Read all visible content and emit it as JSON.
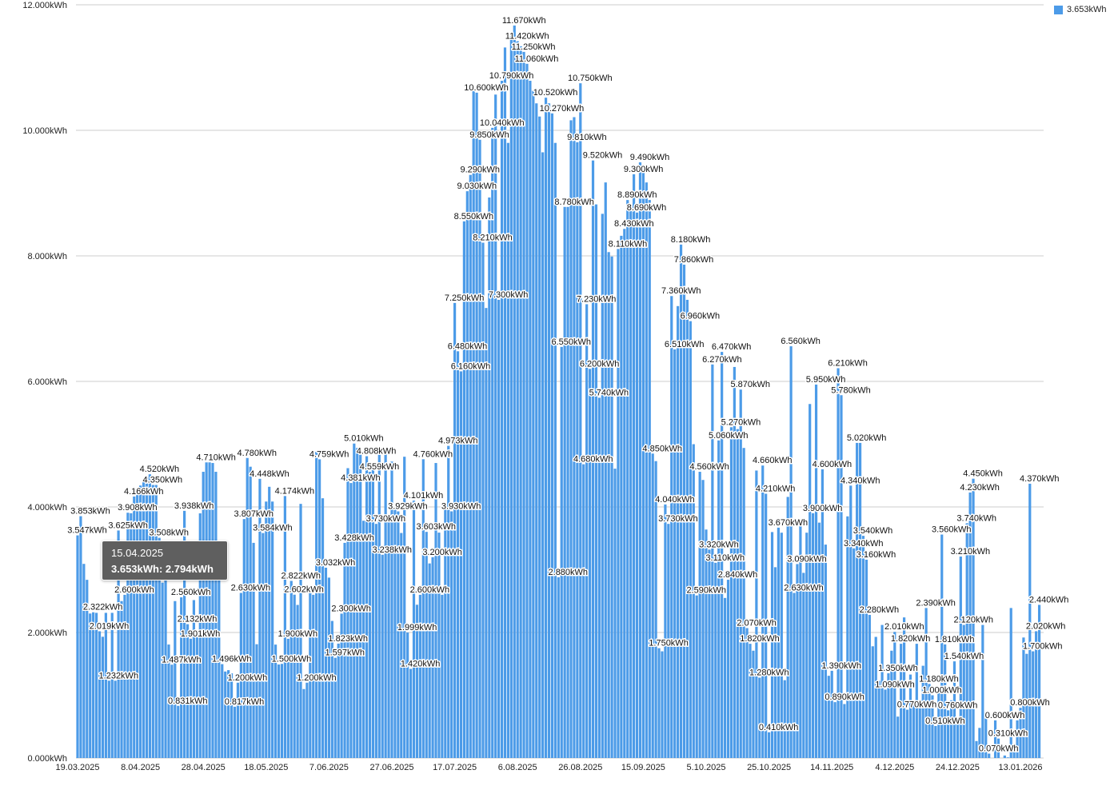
{
  "chart_data": {
    "type": "bar",
    "title": "",
    "xlabel": "",
    "ylabel": "",
    "unit": "kWh",
    "ylim": [
      0,
      12
    ],
    "grid": true,
    "legend_position": "top-right",
    "x_start": "19.03.2025",
    "x_step_days": 1,
    "yticks": [
      "0.000kWh",
      "2.000kWh",
      "4.000kWh",
      "6.000kWh",
      "8.000kWh",
      "10.000kWh",
      "12.000kWh"
    ],
    "xticks": [
      "19.03.2025",
      "8.04.2025",
      "28.04.2025",
      "18.05.2025",
      "7.06.2025",
      "27.06.2025",
      "17.07.2025",
      "6.08.2025",
      "26.08.2025",
      "15.09.2025",
      "5.10.2025",
      "25.10.2025",
      "14.11.2025",
      "4.12.2025",
      "24.12.2025",
      "13.01.2026"
    ],
    "series": [
      {
        "name": "3.653kWh",
        "color": "#4c9be8",
        "values": [
          3.547,
          3.853,
          3.093,
          2.839,
          2.302,
          2.322,
          2.313,
          2.019,
          1.932,
          2.313,
          1.232,
          2.313,
          1.232,
          3.625,
          2.5,
          2.6,
          3.908,
          3.9,
          4.166,
          4.203,
          4.341,
          4.428,
          4.47,
          4.52,
          4.35,
          4.35,
          3.508,
          2.794,
          3.369,
          1.808,
          1.487,
          2.5,
          0.831,
          2.56,
          3.938,
          2.132,
          1.901,
          2.516,
          2.001,
          3.898,
          4.56,
          4.71,
          4.71,
          4.7,
          4.56,
          3.1,
          1.496,
          1.378,
          1.4,
          1.35,
          0.817,
          1.2,
          2.63,
          3.807,
          4.78,
          4.641,
          3.428,
          1.813,
          4.448,
          3.584,
          4.086,
          4.321,
          4.086,
          1.807,
          1.49,
          1.5,
          4.174,
          1.9,
          2.822,
          2.602,
          2.439,
          4.049,
          1.099,
          1.2,
          2.737,
          2.6,
          4.878,
          4.759,
          4.138,
          3.032,
          2.874,
          2.184,
          1.597,
          1.823,
          2.3,
          3.428,
          4.618,
          4.381,
          5.01,
          4.94,
          4.85,
          3.78,
          4.808,
          4.559,
          4.7,
          3.73,
          4.9,
          3.238,
          4.914,
          3.814,
          4.723,
          3.99,
          3.929,
          3.585,
          4.8,
          1.999,
          1.42,
          4.101,
          2.442,
          2.6,
          4.76,
          3.603,
          3.1,
          3.2,
          4.7,
          3.591,
          2.6,
          4.0,
          4.973,
          3.93,
          7.25,
          6.48,
          6.16,
          8.55,
          9.03,
          9.29,
          10.66,
          10.6,
          9.85,
          8.21,
          7.17,
          8.93,
          10.04,
          10.57,
          7.3,
          10.79,
          11.32,
          9.8,
          11.51,
          11.67,
          11.42,
          11.34,
          11.25,
          11.06,
          10.79,
          10.63,
          10.43,
          10.22,
          9.65,
          10.52,
          10.43,
          10.27,
          9.8,
          2.88,
          6.55,
          8.78,
          8.78,
          10.16,
          10.21,
          9.81,
          10.75,
          4.68,
          7.23,
          6.2,
          9.52,
          8.82,
          5.74,
          8.67,
          9.17,
          8.06,
          7.99,
          4.61,
          8.11,
          8.32,
          8.43,
          8.89,
          8.75,
          9.3,
          8.69,
          9.49,
          9.35,
          9.17,
          8.89,
          4.85,
          4.73,
          1.75,
          1.7,
          4.04,
          3.73,
          7.36,
          6.51,
          7.2,
          8.18,
          7.86,
          7.3,
          6.96,
          5.0,
          2.59,
          4.56,
          4.43,
          3.64,
          3.32,
          6.27,
          3.11,
          5.06,
          6.47,
          2.55,
          2.84,
          5.27,
          6.23,
          5.24,
          5.87,
          4.94,
          2.07,
          1.82,
          1.71,
          4.58,
          1.28,
          4.66,
          4.21,
          0.41,
          3.6,
          3.04,
          3.67,
          3.59,
          1.24,
          4.16,
          6.56,
          2.63,
          3.09,
          3.8,
          2.95,
          3.59,
          5.64,
          3.9,
          5.95,
          3.75,
          4.6,
          3.4,
          1.31,
          1.39,
          0.89,
          6.21,
          5.78,
          0.86,
          3.85,
          4.34,
          3.34,
          5.02,
          5.02,
          3.54,
          3.16,
          2.28,
          1.78,
          1.93,
          1.23,
          2.12,
          1.09,
          1.35,
          1.71,
          2.01,
          0.66,
          1.82,
          2.24,
          0.77,
          1.33,
          0.88,
          1.82,
          0.92,
          1.47,
          2.39,
          1.18,
          1.0,
          0.51,
          1.07,
          3.56,
          1.81,
          0.76,
          0.92,
          1.54,
          0.6,
          3.21,
          2.12,
          3.74,
          4.23,
          4.45,
          0.27,
          0.48,
          2.12,
          0.63,
          0.07,
          0.0,
          0.6,
          0.31,
          0.0,
          0.04,
          0.01,
          2.39,
          0.16,
          0.6,
          0.8,
          1.92,
          1.66,
          4.37,
          1.7,
          2.02,
          2.44
        ]
      }
    ],
    "tooltip": {
      "date": "15.04.2025",
      "text": "3.653kWh: 2.794kWh"
    }
  },
  "legend": {
    "label": "3.653kWh"
  }
}
